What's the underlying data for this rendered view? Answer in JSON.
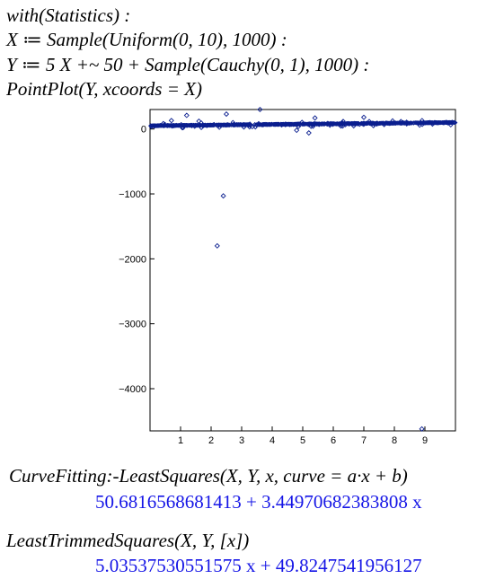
{
  "commands": {
    "line1": "with(Statistics) :",
    "line2": "X ≔ Sample(Uniform(0, 10), 1000) :",
    "line3": "Y ≔ 5 X +~ 50 + Sample(Cauchy(0, 1), 1000) :",
    "line4": "PointPlot(Y, xcoords = X)",
    "line5": "CurveFitting:-LeastSquares(X, Y, x, curve = a·x + b)",
    "line6": "LeastTrimmedSquares(X, Y, [x])"
  },
  "outputs": {
    "result1": "50.6816568681413 + 3.44970682383808 x",
    "result2": "5.03537530551575 x + 49.8247541956127"
  },
  "chart_data": {
    "type": "scatter",
    "xlim": [
      0,
      10
    ],
    "ylim": [
      -4650,
      300
    ],
    "x_ticks": [
      1,
      2,
      3,
      4,
      5,
      6,
      7,
      8,
      9
    ],
    "y_ticks": [
      0,
      -1000,
      -2000,
      -3000,
      -4000
    ],
    "y_tick_labels": [
      "0",
      "−1000",
      "−2000",
      "−3000",
      "−4000"
    ],
    "marker_color": "#0b1f8f",
    "grid": false,
    "outliers": [
      {
        "x": 2.2,
        "y": -1800
      },
      {
        "x": 2.4,
        "y": -1030
      },
      {
        "x": 8.9,
        "y": -4620
      },
      {
        "x": 1.2,
        "y": 210
      },
      {
        "x": 2.5,
        "y": 230
      },
      {
        "x": 3.6,
        "y": 300
      },
      {
        "x": 0.7,
        "y": 130
      },
      {
        "x": 5.4,
        "y": 170
      },
      {
        "x": 7.0,
        "y": 180
      },
      {
        "x": 4.8,
        "y": -20
      },
      {
        "x": 5.2,
        "y": -60
      },
      {
        "x": 1.6,
        "y": 120
      }
    ]
  }
}
